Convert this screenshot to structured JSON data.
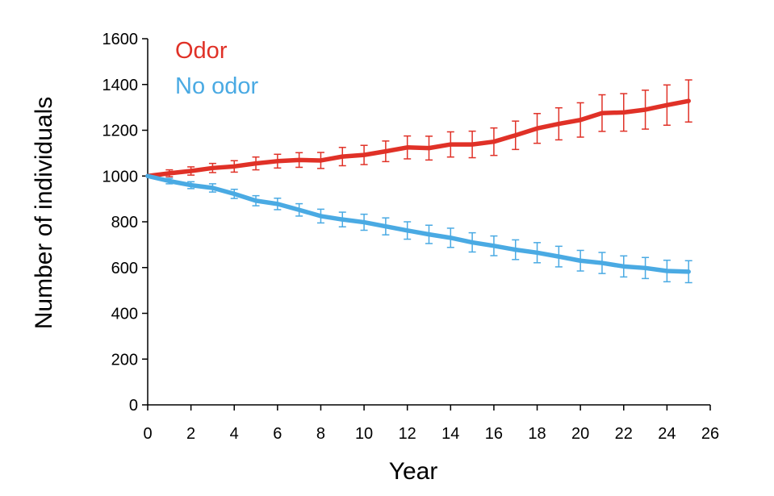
{
  "chart_data": {
    "type": "line",
    "title": "",
    "xlabel": "Year",
    "ylabel": "Number of individuals",
    "xlim": [
      0,
      26
    ],
    "ylim": [
      0,
      1600
    ],
    "xticks": [
      "0",
      "2",
      "4",
      "6",
      "8",
      "10",
      "12",
      "14",
      "16",
      "18",
      "20",
      "22",
      "24",
      "26"
    ],
    "yticks": [
      "0",
      "200",
      "400",
      "600",
      "800",
      "1000",
      "1200",
      "1400",
      "1600"
    ],
    "grid": false,
    "legend_position": "top-left",
    "x": [
      0,
      1,
      2,
      3,
      4,
      5,
      6,
      7,
      8,
      9,
      10,
      11,
      12,
      13,
      14,
      15,
      16,
      17,
      18,
      19,
      20,
      21,
      22,
      23,
      24,
      25
    ],
    "series": [
      {
        "name": "Odor",
        "color": "#e03127",
        "values": [
          1000,
          1012,
          1022,
          1035,
          1042,
          1055,
          1065,
          1070,
          1068,
          1085,
          1092,
          1108,
          1125,
          1122,
          1138,
          1138,
          1150,
          1178,
          1208,
          1228,
          1245,
          1275,
          1278,
          1290,
          1310,
          1328
        ],
        "errors": [
          0,
          15,
          18,
          20,
          25,
          28,
          30,
          32,
          35,
          40,
          42,
          45,
          50,
          52,
          55,
          58,
          60,
          62,
          65,
          70,
          75,
          80,
          82,
          85,
          88,
          92
        ]
      },
      {
        "name": "No odor",
        "color": "#4aaae3",
        "values": [
          1000,
          978,
          960,
          948,
          922,
          892,
          878,
          852,
          825,
          810,
          798,
          780,
          762,
          745,
          730,
          710,
          695,
          678,
          665,
          648,
          630,
          620,
          605,
          598,
          585,
          582
        ],
        "errors": [
          0,
          12,
          15,
          18,
          20,
          22,
          25,
          27,
          30,
          32,
          35,
          37,
          38,
          40,
          42,
          42,
          43,
          43,
          44,
          45,
          45,
          46,
          46,
          46,
          47,
          48
        ]
      }
    ]
  }
}
